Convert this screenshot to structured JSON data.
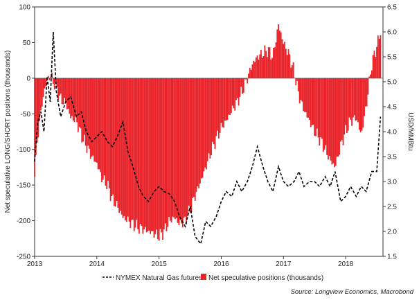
{
  "chart_data": {
    "type": "bar+line",
    "left_axis": {
      "label": "Net speculative LONG/SHORT positions (thousands)",
      "ylim": [
        -250,
        100
      ],
      "ticks": [
        100,
        50,
        0,
        -50,
        -100,
        -150,
        -200,
        -250
      ]
    },
    "right_axis": {
      "label": "USD/MMBtu",
      "ylim": [
        1.5,
        6.5
      ],
      "ticks": [
        6.5,
        6.0,
        5.5,
        5.0,
        4.5,
        4.0,
        3.5,
        3.0,
        2.5,
        2.0,
        1.5
      ]
    },
    "x_axis": {
      "range": [
        2013.0,
        2018.6
      ],
      "ticks": [
        "2013",
        "2014",
        "2015",
        "2016",
        "2017",
        "2018"
      ]
    },
    "bar_series": {
      "name": "Net speculative positions (thousands)",
      "color": "#e8242a",
      "axis": "left",
      "points": [
        [
          2013.0,
          -130
        ],
        [
          2013.08,
          -60
        ],
        [
          2013.17,
          -10
        ],
        [
          2013.25,
          5
        ],
        [
          2013.33,
          -10
        ],
        [
          2013.42,
          -30
        ],
        [
          2013.5,
          -35
        ],
        [
          2013.58,
          -55
        ],
        [
          2013.67,
          -60
        ],
        [
          2013.75,
          -80
        ],
        [
          2013.83,
          -95
        ],
        [
          2013.92,
          -110
        ],
        [
          2014.0,
          -120
        ],
        [
          2014.08,
          -140
        ],
        [
          2014.17,
          -150
        ],
        [
          2014.25,
          -170
        ],
        [
          2014.33,
          -180
        ],
        [
          2014.42,
          -195
        ],
        [
          2014.5,
          -200
        ],
        [
          2014.58,
          -205
        ],
        [
          2014.67,
          -210
        ],
        [
          2014.75,
          -212
        ],
        [
          2014.83,
          -215
        ],
        [
          2014.92,
          -218
        ],
        [
          2015.0,
          -222
        ],
        [
          2015.08,
          -215
        ],
        [
          2015.17,
          -200
        ],
        [
          2015.25,
          -195
        ],
        [
          2015.33,
          -205
        ],
        [
          2015.42,
          -200
        ],
        [
          2015.5,
          -185
        ],
        [
          2015.58,
          -165
        ],
        [
          2015.67,
          -145
        ],
        [
          2015.75,
          -125
        ],
        [
          2015.83,
          -105
        ],
        [
          2015.92,
          -85
        ],
        [
          2016.0,
          -70
        ],
        [
          2016.08,
          -60
        ],
        [
          2016.17,
          -45
        ],
        [
          2016.25,
          -35
        ],
        [
          2016.33,
          -20
        ],
        [
          2016.42,
          0
        ],
        [
          2016.5,
          20
        ],
        [
          2016.58,
          30
        ],
        [
          2016.67,
          35
        ],
        [
          2016.75,
          40
        ],
        [
          2016.83,
          30
        ],
        [
          2016.92,
          75
        ],
        [
          2017.0,
          50
        ],
        [
          2017.08,
          35
        ],
        [
          2017.17,
          10
        ],
        [
          2017.25,
          -25
        ],
        [
          2017.33,
          -45
        ],
        [
          2017.42,
          -60
        ],
        [
          2017.5,
          -75
        ],
        [
          2017.58,
          -85
        ],
        [
          2017.67,
          -100
        ],
        [
          2017.75,
          -115
        ],
        [
          2017.83,
          -125
        ],
        [
          2017.92,
          -95
        ],
        [
          2018.0,
          -75
        ],
        [
          2018.08,
          -60
        ],
        [
          2018.17,
          -55
        ],
        [
          2018.25,
          -80
        ],
        [
          2018.33,
          -40
        ],
        [
          2018.42,
          20
        ],
        [
          2018.5,
          45
        ],
        [
          2018.56,
          65
        ]
      ]
    },
    "line_series": {
      "name": "NYMEX Natural Gas futures",
      "color": "#000000",
      "style": "dashed",
      "axis": "right",
      "points": [
        [
          2013.0,
          3.4
        ],
        [
          2013.05,
          4.2
        ],
        [
          2013.1,
          4.4
        ],
        [
          2013.15,
          4.0
        ],
        [
          2013.2,
          5.1
        ],
        [
          2013.25,
          4.6
        ],
        [
          2013.3,
          6.0
        ],
        [
          2013.35,
          4.8
        ],
        [
          2013.42,
          4.3
        ],
        [
          2013.5,
          4.6
        ],
        [
          2013.58,
          4.7
        ],
        [
          2013.67,
          4.3
        ],
        [
          2013.75,
          4.4
        ],
        [
          2013.83,
          4.0
        ],
        [
          2013.92,
          3.8
        ],
        [
          2014.0,
          3.9
        ],
        [
          2014.08,
          4.0
        ],
        [
          2014.17,
          3.8
        ],
        [
          2014.25,
          3.7
        ],
        [
          2014.33,
          3.9
        ],
        [
          2014.42,
          4.2
        ],
        [
          2014.5,
          3.6
        ],
        [
          2014.58,
          3.3
        ],
        [
          2014.67,
          2.9
        ],
        [
          2014.75,
          2.7
        ],
        [
          2014.83,
          2.6
        ],
        [
          2014.92,
          2.8
        ],
        [
          2015.0,
          2.9
        ],
        [
          2015.08,
          2.8
        ],
        [
          2015.17,
          2.75
        ],
        [
          2015.25,
          2.6
        ],
        [
          2015.33,
          2.3
        ],
        [
          2015.42,
          2.1
        ],
        [
          2015.5,
          2.5
        ],
        [
          2015.58,
          1.9
        ],
        [
          2015.67,
          1.75
        ],
        [
          2015.75,
          2.2
        ],
        [
          2015.83,
          2.1
        ],
        [
          2015.92,
          2.3
        ],
        [
          2016.0,
          2.6
        ],
        [
          2016.08,
          2.8
        ],
        [
          2016.17,
          2.7
        ],
        [
          2016.25,
          3.0
        ],
        [
          2016.33,
          2.8
        ],
        [
          2016.42,
          3.0
        ],
        [
          2016.5,
          3.3
        ],
        [
          2016.58,
          3.7
        ],
        [
          2016.67,
          3.3
        ],
        [
          2016.75,
          3.0
        ],
        [
          2016.83,
          2.8
        ],
        [
          2016.92,
          3.3
        ],
        [
          2017.0,
          3.0
        ],
        [
          2017.08,
          2.9
        ],
        [
          2017.17,
          3.0
        ],
        [
          2017.25,
          3.2
        ],
        [
          2017.33,
          2.9
        ],
        [
          2017.42,
          3.0
        ],
        [
          2017.5,
          3.0
        ],
        [
          2017.58,
          2.9
        ],
        [
          2017.67,
          3.1
        ],
        [
          2017.75,
          2.9
        ],
        [
          2017.83,
          3.2
        ],
        [
          2017.92,
          2.6
        ],
        [
          2018.0,
          2.7
        ],
        [
          2018.08,
          2.9
        ],
        [
          2018.17,
          2.7
        ],
        [
          2018.25,
          2.9
        ],
        [
          2018.33,
          2.8
        ],
        [
          2018.42,
          3.2
        ],
        [
          2018.5,
          3.2
        ],
        [
          2018.56,
          4.3
        ]
      ]
    },
    "legend": {
      "placement": "bottom",
      "line_label": "NYMEX Natural Gas futures",
      "bar_label": "Net speculative positions (thousands)"
    }
  },
  "source_note": "Source: Longview Economics, Macrobond"
}
